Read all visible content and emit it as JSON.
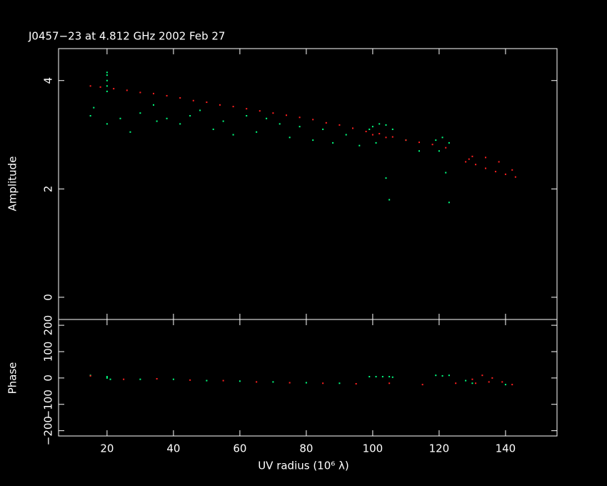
{
  "chart_data": [
    {
      "type": "scatter",
      "title": "J0457−23 at 4.812 GHz 2002 Feb 27",
      "y_label": "Amplitude",
      "xlim": [
        5.4,
        155.5
      ],
      "xticks": [
        20,
        40,
        60,
        80,
        100,
        120,
        140
      ],
      "ylim": [
        -0.41,
        4.59
      ],
      "yticks": [
        0,
        2,
        4
      ],
      "series": [
        {
          "color": "#00ff7f",
          "x": [
            20,
            20,
            20,
            20,
            20,
            15,
            16,
            20,
            24,
            27,
            30,
            34,
            35,
            38,
            42,
            45,
            48,
            52,
            55,
            58,
            62,
            65,
            68,
            72,
            75,
            78,
            82,
            85,
            88,
            92,
            96,
            99,
            100,
            102,
            104,
            106,
            101,
            105,
            104,
            119,
            121,
            123,
            120,
            123,
            122,
            110,
            114
          ],
          "values": [
            3.8,
            3.9,
            4.0,
            4.1,
            4.15,
            3.35,
            3.5,
            3.2,
            3.3,
            3.05,
            3.4,
            3.55,
            3.25,
            3.3,
            3.2,
            3.35,
            3.45,
            3.1,
            3.25,
            3.0,
            3.35,
            3.05,
            3.3,
            3.2,
            2.95,
            3.15,
            2.9,
            3.1,
            2.85,
            3.0,
            2.8,
            3.1,
            3.15,
            3.2,
            3.18,
            3.1,
            2.85,
            1.8,
            2.2,
            2.9,
            2.95,
            2.85,
            2.7,
            1.75,
            2.3,
            2.9,
            2.7
          ]
        },
        {
          "color": "#ff2020",
          "x": [
            15,
            18,
            22,
            26,
            30,
            34,
            38,
            42,
            46,
            50,
            54,
            58,
            62,
            66,
            70,
            74,
            78,
            82,
            86,
            90,
            94,
            98,
            102,
            106,
            110,
            114,
            118,
            122,
            129,
            131,
            134,
            137,
            140,
            143,
            130,
            134,
            138,
            142,
            128,
            100,
            104
          ],
          "values": [
            3.9,
            3.88,
            3.85,
            3.82,
            3.78,
            3.76,
            3.72,
            3.68,
            3.63,
            3.6,
            3.55,
            3.52,
            3.48,
            3.44,
            3.4,
            3.36,
            3.32,
            3.28,
            3.22,
            3.18,
            3.12,
            3.06,
            3.02,
            2.96,
            2.9,
            2.86,
            2.82,
            2.76,
            2.55,
            2.45,
            2.38,
            2.32,
            2.27,
            2.22,
            2.6,
            2.58,
            2.5,
            2.35,
            2.5,
            3.0,
            2.95
          ]
        }
      ]
    },
    {
      "type": "scatter",
      "x_label": "UV radius  (10⁶ λ)",
      "y_label": "Phase",
      "xlim": [
        5.4,
        155.5
      ],
      "xticks": [
        20,
        40,
        60,
        80,
        100,
        120,
        140
      ],
      "ylim": [
        -220,
        222
      ],
      "yticks": [
        {
          "value": -200,
          "label": "−200"
        },
        {
          "value": -100,
          "label": "−100"
        },
        0,
        100,
        200
      ],
      "series": [
        {
          "color": "#00ff7f",
          "x": [
            15,
            20,
            20,
            21,
            30,
            40,
            50,
            60,
            70,
            80,
            90,
            99,
            101,
            103,
            105,
            106,
            119,
            121,
            123,
            128,
            130,
            140
          ],
          "values": [
            10,
            0,
            5,
            -5,
            -5,
            -5,
            -10,
            -12,
            -15,
            -18,
            -20,
            5,
            5,
            5,
            5,
            3,
            10,
            8,
            10,
            -10,
            -20,
            -25
          ]
        },
        {
          "color": "#ff2020",
          "x": [
            15,
            25,
            35,
            45,
            55,
            65,
            75,
            85,
            95,
            105,
            115,
            125,
            130,
            133,
            136,
            139,
            142,
            131,
            135
          ],
          "values": [
            8,
            -5,
            -3,
            -8,
            -10,
            -15,
            -18,
            -20,
            -22,
            -20,
            -25,
            -20,
            -5,
            10,
            0,
            -15,
            -25,
            -20,
            -15
          ]
        }
      ]
    }
  ]
}
